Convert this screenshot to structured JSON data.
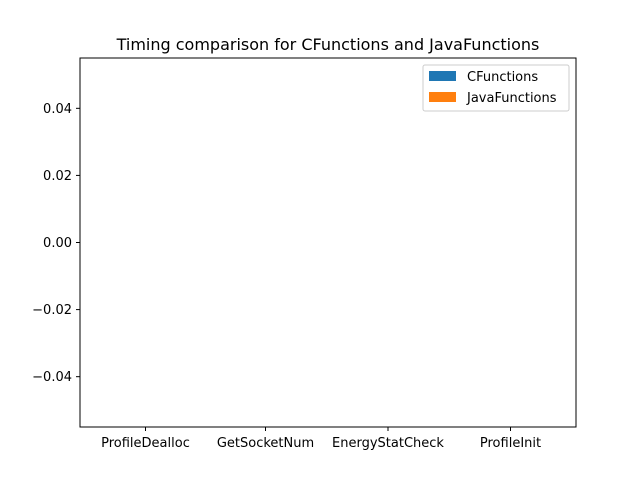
{
  "chart_data": {
    "type": "bar",
    "title": "Timing comparison for CFunctions and JavaFunctions",
    "xlabel": "",
    "ylabel": "",
    "categories": [
      "ProfileDealloc",
      "GetSocketNum",
      "EnergyStatCheck",
      "ProfileInit"
    ],
    "series": [
      {
        "name": "CFunctions",
        "color": "#1f77b4",
        "values": [
          0,
          0,
          0,
          0
        ]
      },
      {
        "name": "JavaFunctions",
        "color": "#ff7f0e",
        "values": [
          0,
          0,
          0,
          0
        ]
      }
    ],
    "ylim": [
      -0.055,
      0.055
    ],
    "yticks": [
      -0.04,
      -0.02,
      0.0,
      0.02,
      0.04
    ],
    "ytick_labels": [
      "−0.04",
      "−0.02",
      "0.00",
      "0.02",
      "0.04"
    ],
    "legend": "top-right",
    "grid": false
  }
}
